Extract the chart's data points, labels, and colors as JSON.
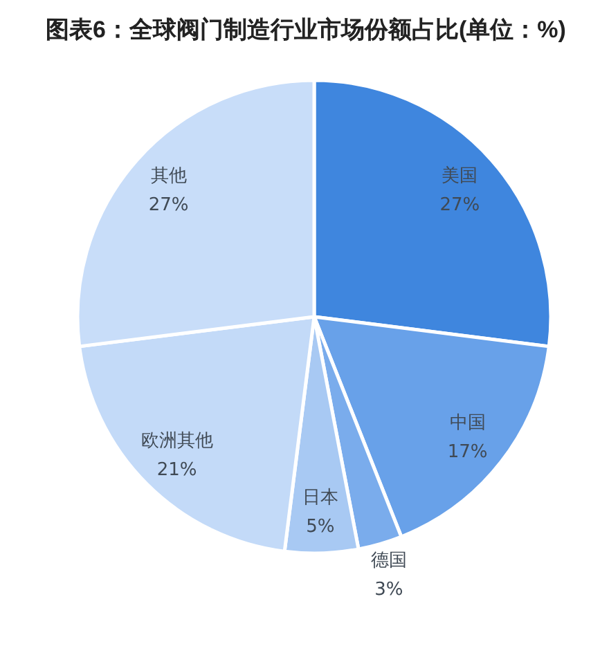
{
  "chart_data": {
    "type": "pie",
    "title": "图表6：全球阀门制造行业市场份额占比(单位：%)",
    "categories": [
      "美国",
      "中国",
      "德国",
      "日本",
      "欧洲其他",
      "其他"
    ],
    "values": [
      27,
      17,
      3,
      5,
      21,
      27
    ],
    "colors": [
      "#3f86de",
      "#68a1e9",
      "#7aacec",
      "#a8c9f3",
      "#c3daf8",
      "#c8ddf9"
    ],
    "value_labels": [
      "27%",
      "17%",
      "3%",
      "5%",
      "21%",
      "27%"
    ]
  }
}
